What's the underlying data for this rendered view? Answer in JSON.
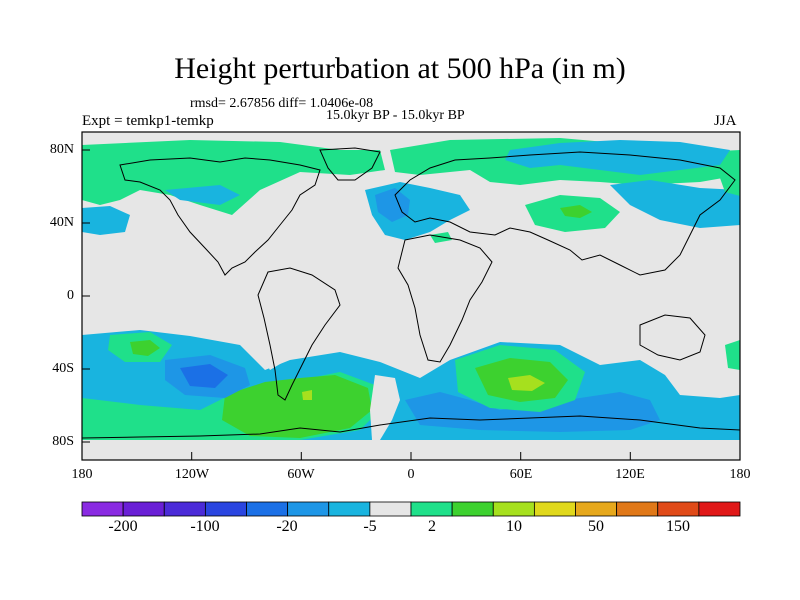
{
  "title": "Height perturbation at 500 hPa (in m)",
  "stats": "rmsd= 2.67856 diff= 1.0406e-08",
  "period": "15.0kyr BP - 15.0kyr BP",
  "expt": "Expt = temkp1-temkp",
  "season": "JJA",
  "lat_labels": [
    "80N",
    "40N",
    "0",
    "40S",
    "80S"
  ],
  "lon_labels": [
    "180",
    "120W",
    "60W",
    "0",
    "60E",
    "120E",
    "180"
  ],
  "colorbar": {
    "labels": [
      "-200",
      "-100",
      "-20",
      "-5",
      "2",
      "10",
      "50",
      "150"
    ],
    "colors": [
      "#8a2be2",
      "#6a1fd6",
      "#4b2bd8",
      "#2a45e0",
      "#1b70e6",
      "#1e96e6",
      "#19b4df",
      "#e6e6e6",
      "#1fe08a",
      "#3dd12f",
      "#a6e01e",
      "#e0d81c",
      "#e6a81c",
      "#e07818",
      "#e04a18",
      "#e01818"
    ]
  }
}
